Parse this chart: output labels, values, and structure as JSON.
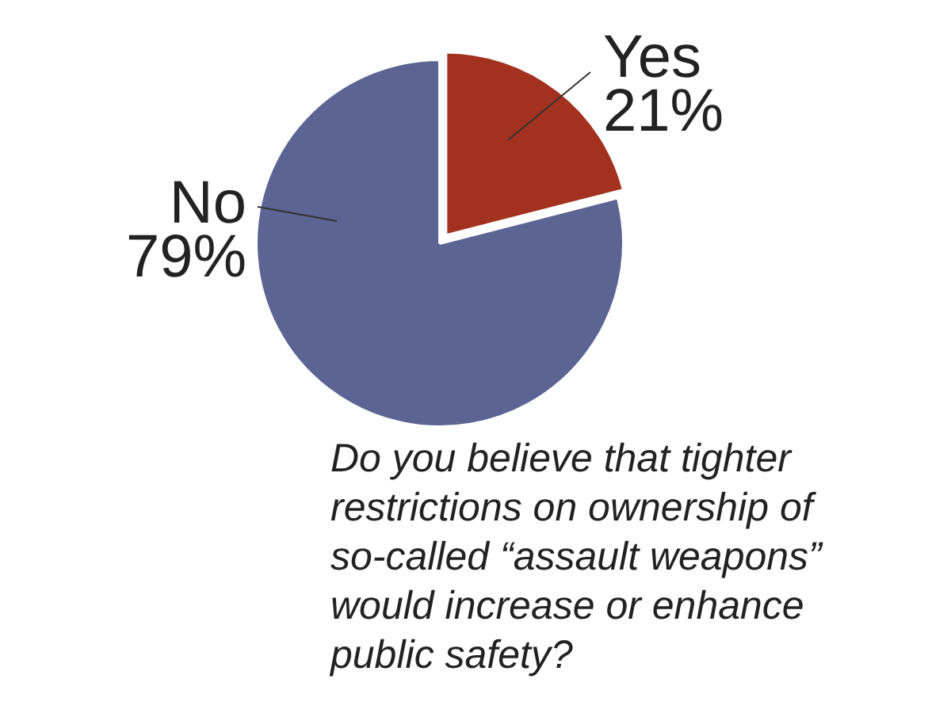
{
  "chart_data": {
    "type": "pie",
    "categories": [
      "Yes",
      "No"
    ],
    "values": [
      21,
      79
    ],
    "colors": [
      "#a3311f",
      "#5b6493"
    ],
    "value_labels": [
      "21%",
      "79%"
    ],
    "annotations": [
      "Do you believe that tighter restrictions on ownership of so-called “assault weapons” would increase or enhance public safety?"
    ]
  }
}
